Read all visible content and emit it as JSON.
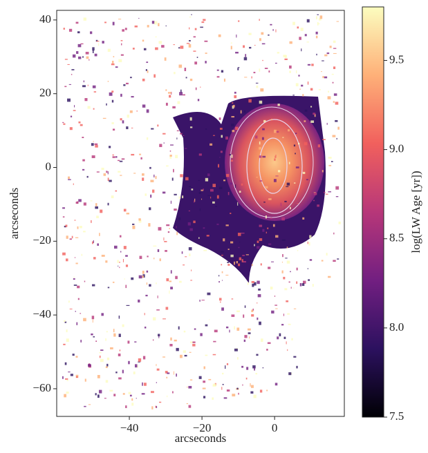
{
  "chart_data": {
    "type": "image",
    "xlabel": "arcseconds",
    "ylabel": "arcseconds",
    "xlim": [
      -60,
      19.2
    ],
    "ylim": [
      -67.5,
      42.6
    ],
    "xticks": [
      {
        "value": -40,
        "label": "−40"
      },
      {
        "value": -20,
        "label": "−20"
      },
      0
    ],
    "yticks": [
      {
        "value": -60,
        "label": "−60"
      },
      {
        "value": -40,
        "label": "−40"
      },
      {
        "value": -20,
        "label": "−20"
      },
      0,
      20,
      40
    ],
    "colorbar_label": "log(LW Age [yr])",
    "clim": [
      7.5,
      9.8
    ],
    "colorbar_ticks": [
      7.5,
      {
        "value": 8,
        "label": "8.0"
      },
      8.5,
      {
        "value": 9,
        "label": "9.0"
      },
      9.5
    ],
    "colormap": [
      "#000004",
      "#2c115f",
      "#721f81",
      "#b73779",
      "#f1605d",
      "#feb078",
      "#fcfdbf"
    ]
  }
}
